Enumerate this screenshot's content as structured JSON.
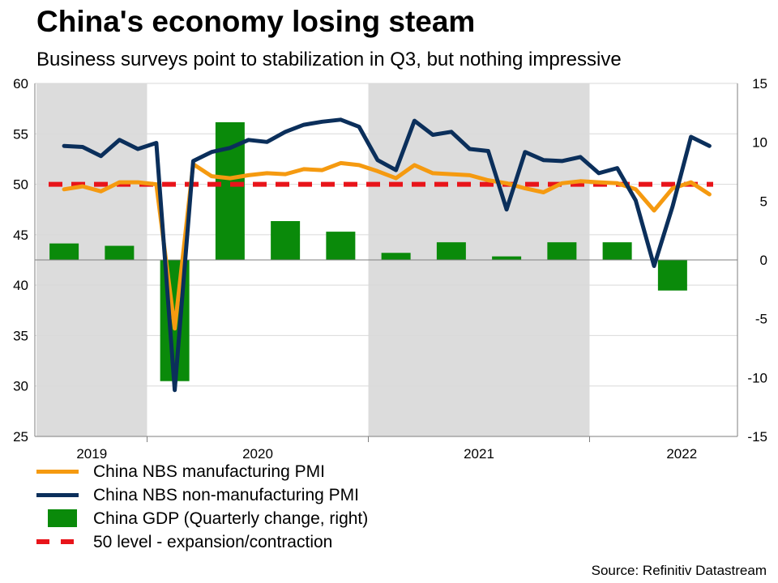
{
  "title": "China's economy losing steam",
  "subtitle": "Business surveys point to stabilization in Q3, but nothing impressive",
  "source": "Source: Refinitiv Datastream",
  "colors": {
    "manufacturing": "#F59A10",
    "non_manufacturing": "#0B2F5B",
    "gdp": "#0A8A0A",
    "threshold": "#E8141A",
    "shade": "#DCDCDC",
    "grid": "#D9D9D9"
  },
  "legend": [
    {
      "key": "manufacturing",
      "label": "China NBS manufacturing PMI",
      "style": "line"
    },
    {
      "key": "non_manufacturing",
      "label": "China NBS non-manufacturing PMI",
      "style": "line"
    },
    {
      "key": "gdp",
      "label": "China GDP (Quarterly change, right)",
      "style": "bar"
    },
    {
      "key": "threshold",
      "label": "50 level - expansion/contraction",
      "style": "dash"
    }
  ],
  "chart_data": {
    "type": "line+bar",
    "title": "China's economy losing steam",
    "subtitle": "Business surveys point to stabilization in Q3, but nothing impressive",
    "x_start": "2019-07",
    "x_end": "2022-10",
    "shaded_years": [
      "2019",
      "2021"
    ],
    "year_labels": [
      "2019",
      "2020",
      "2021",
      "2022"
    ],
    "left_axis": {
      "ylim": [
        25,
        60
      ],
      "ticks": [
        "60",
        "55",
        "50",
        "45",
        "40",
        "35",
        "30",
        "25"
      ]
    },
    "right_axis": {
      "ylim": [
        -15,
        15
      ],
      "ticks": [
        "15",
        "10",
        "5",
        "0",
        "-5",
        "-10",
        "-15"
      ]
    },
    "threshold": 50,
    "series": [
      {
        "name": "China NBS manufacturing PMI",
        "key": "manufacturing",
        "axis": "left",
        "start": "2019-08",
        "values": [
          49.5,
          49.8,
          49.3,
          50.2,
          50.2,
          50.0,
          35.7,
          52.0,
          50.8,
          50.6,
          50.9,
          51.1,
          51.0,
          51.5,
          51.4,
          52.1,
          51.9,
          51.3,
          50.6,
          51.9,
          51.1,
          51.0,
          50.9,
          50.4,
          50.1,
          49.6,
          49.2,
          50.1,
          50.3,
          50.2,
          50.1,
          49.5,
          47.4,
          49.6,
          50.2,
          49.0
        ]
      },
      {
        "name": "China NBS non-manufacturing PMI",
        "key": "non_manufacturing",
        "axis": "left",
        "start": "2019-08",
        "values": [
          53.8,
          53.7,
          52.8,
          54.4,
          53.5,
          54.1,
          29.6,
          52.3,
          53.2,
          53.6,
          54.4,
          54.2,
          55.2,
          55.9,
          56.2,
          56.4,
          55.7,
          52.4,
          51.4,
          56.3,
          54.9,
          55.2,
          53.5,
          53.3,
          47.5,
          53.2,
          52.4,
          52.3,
          52.7,
          51.1,
          51.6,
          48.4,
          41.9,
          47.8,
          54.7,
          53.8
        ]
      },
      {
        "name": "China GDP (Quarterly change, right)",
        "key": "gdp",
        "axis": "right",
        "type": "bar",
        "quarters": [
          "2019Q3",
          "2019Q4",
          "2020Q1",
          "2020Q2",
          "2020Q3",
          "2020Q4",
          "2021Q1",
          "2021Q2",
          "2021Q3",
          "2021Q4",
          "2022Q1",
          "2022Q2"
        ],
        "values": [
          1.4,
          1.2,
          -10.3,
          11.7,
          3.3,
          2.4,
          0.6,
          1.5,
          0.3,
          1.5,
          1.5,
          -2.6
        ]
      }
    ]
  }
}
